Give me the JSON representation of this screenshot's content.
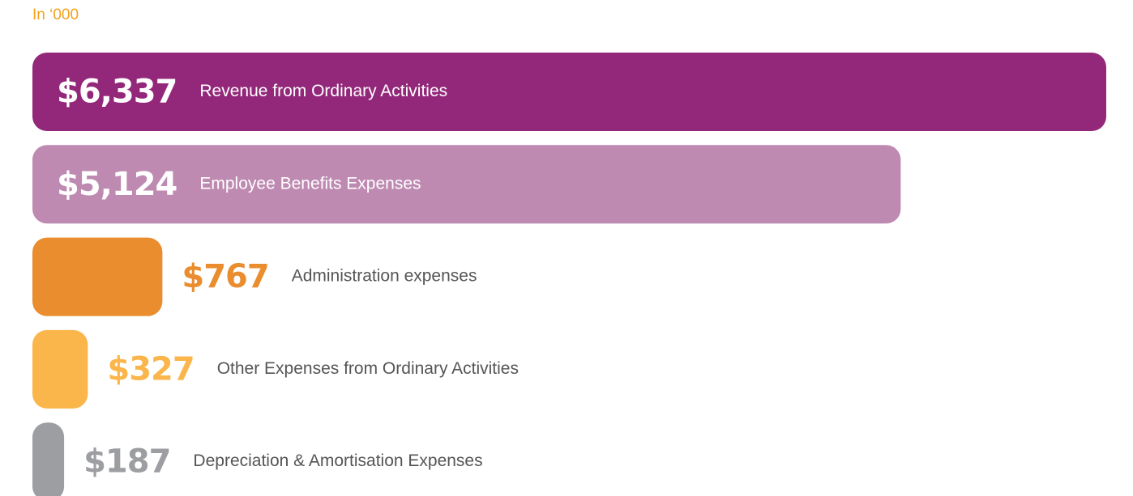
{
  "chart_data": {
    "type": "hbar",
    "subtitle": "In ‘000",
    "categories": [
      "Revenue from Ordinary Activities",
      "Employee Benefits Expenses",
      "Administration expenses",
      "Other Expenses from Ordinary Activities",
      "Depreciation & Amortisation Expenses"
    ],
    "values": [
      6337,
      5124,
      767,
      327,
      187
    ],
    "value_labels": [
      "$6,337",
      "$5,124",
      "$767",
      "$327",
      "$187"
    ],
    "colors": [
      "#93287a",
      "#be8ab1",
      "#e98d2f",
      "#fbb64b",
      "#9d9ea2"
    ]
  }
}
